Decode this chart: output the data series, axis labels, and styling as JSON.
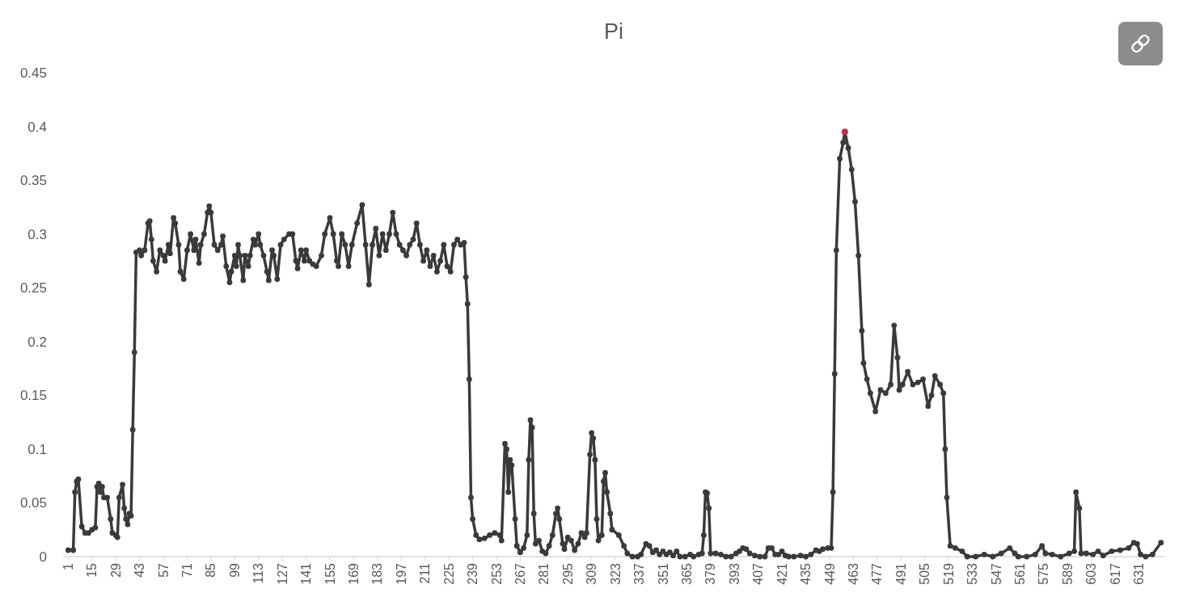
{
  "chart_data": {
    "type": "line",
    "title": "Pi",
    "xlim": [
      -2,
      646
    ],
    "xticks": [
      1,
      15,
      29,
      43,
      57,
      71,
      85,
      99,
      113,
      127,
      141,
      155,
      169,
      183,
      197,
      211,
      225,
      239,
      253,
      267,
      281,
      295,
      309,
      323,
      337,
      351,
      365,
      379,
      393,
      407,
      421,
      435,
      449,
      463,
      477,
      491,
      505,
      519,
      533,
      547,
      561,
      575,
      589,
      603,
      617,
      631
    ],
    "ylim": [
      0,
      0.45
    ],
    "yticks": [
      0,
      0.05,
      0.1,
      0.15,
      0.2,
      0.25,
      0.3,
      0.35,
      0.4,
      0.45
    ],
    "marker": "circle",
    "series": [
      {
        "color": "#3a3a3a",
        "x": [
          1,
          4,
          5,
          6,
          7,
          9,
          11,
          13,
          15,
          17,
          18,
          19,
          20,
          21,
          22,
          24,
          26,
          27,
          29,
          30,
          31,
          33,
          34,
          35,
          36,
          37,
          38,
          39,
          40,
          41,
          43,
          44,
          46,
          48,
          49,
          50,
          51,
          53,
          55,
          57,
          58,
          60,
          61,
          63,
          64,
          66,
          67,
          69,
          71,
          73,
          75,
          76,
          78,
          79,
          81,
          83,
          84,
          85,
          87,
          89,
          91,
          92,
          94,
          96,
          97,
          99,
          100,
          101,
          102,
          104,
          105,
          107,
          108,
          110,
          111,
          113,
          114,
          116,
          118,
          119,
          121,
          122,
          124,
          126,
          128,
          131,
          133,
          135,
          136,
          138,
          140,
          141,
          143,
          145,
          147,
          150,
          152,
          155,
          157,
          159,
          160,
          162,
          164,
          166,
          168,
          171,
          174,
          176,
          178,
          180,
          182,
          184,
          186,
          188,
          190,
          192,
          194,
          196,
          198,
          200,
          202,
          204,
          206,
          208,
          210,
          212,
          214,
          216,
          218,
          220,
          222,
          224,
          226,
          228,
          230,
          232,
          234,
          235,
          236,
          237,
          238,
          239,
          241,
          243,
          246,
          249,
          252,
          255,
          256,
          258,
          259,
          260,
          261,
          262,
          264,
          265,
          267,
          269,
          271,
          272,
          273,
          274,
          275,
          276,
          278,
          280,
          282,
          284,
          286,
          288,
          289,
          290,
          292,
          293,
          295,
          297,
          299,
          301,
          303,
          305,
          306,
          308,
          309,
          310,
          311,
          312,
          313,
          315,
          316,
          317,
          318,
          320,
          321,
          325,
          328,
          330,
          333,
          336,
          338,
          341,
          343,
          345,
          347,
          349,
          351,
          353,
          355,
          357,
          359,
          361,
          364,
          367,
          369,
          372,
          374,
          375,
          376,
          377,
          378,
          379,
          382,
          385,
          388,
          391,
          394,
          396,
          398,
          400,
          402,
          405,
          408,
          411,
          413,
          415,
          417,
          419,
          421,
          423,
          425,
          428,
          432,
          435,
          438,
          441,
          443,
          445,
          448,
          450,
          451,
          452,
          453,
          455,
          457,
          458,
          460,
          462,
          464,
          466,
          468,
          469,
          471,
          473,
          476,
          479,
          482,
          485,
          487,
          489,
          490,
          492,
          495,
          498,
          501,
          504,
          507,
          509,
          511,
          514,
          516,
          517,
          518,
          520,
          523,
          527,
          530,
          535,
          540,
          545,
          550,
          555,
          558,
          560,
          565,
          570,
          574,
          576,
          580,
          585,
          590,
          593,
          594,
          596,
          597,
          600,
          604,
          607,
          610,
          615,
          620,
          625,
          628,
          630,
          632,
          635,
          639,
          644
        ],
        "values": [
          0.006,
          0.006,
          0.06,
          0.07,
          0.072,
          0.028,
          0.022,
          0.022,
          0.025,
          0.027,
          0.065,
          0.068,
          0.06,
          0.065,
          0.055,
          0.055,
          0.035,
          0.022,
          0.02,
          0.018,
          0.055,
          0.067,
          0.045,
          0.035,
          0.03,
          0.04,
          0.038,
          0.118,
          0.19,
          0.283,
          0.285,
          0.28,
          0.285,
          0.31,
          0.312,
          0.295,
          0.275,
          0.265,
          0.285,
          0.28,
          0.275,
          0.29,
          0.282,
          0.315,
          0.31,
          0.29,
          0.265,
          0.258,
          0.285,
          0.3,
          0.285,
          0.295,
          0.273,
          0.29,
          0.3,
          0.32,
          0.326,
          0.32,
          0.29,
          0.285,
          0.29,
          0.298,
          0.27,
          0.255,
          0.265,
          0.28,
          0.27,
          0.29,
          0.28,
          0.257,
          0.28,
          0.27,
          0.28,
          0.295,
          0.29,
          0.3,
          0.29,
          0.28,
          0.265,
          0.257,
          0.285,
          0.28,
          0.258,
          0.29,
          0.295,
          0.3,
          0.3,
          0.275,
          0.268,
          0.285,
          0.275,
          0.285,
          0.275,
          0.272,
          0.27,
          0.28,
          0.3,
          0.315,
          0.3,
          0.275,
          0.27,
          0.3,
          0.29,
          0.27,
          0.29,
          0.31,
          0.327,
          0.29,
          0.253,
          0.29,
          0.305,
          0.28,
          0.3,
          0.285,
          0.3,
          0.32,
          0.3,
          0.29,
          0.285,
          0.28,
          0.29,
          0.295,
          0.31,
          0.29,
          0.275,
          0.285,
          0.27,
          0.28,
          0.265,
          0.275,
          0.29,
          0.27,
          0.265,
          0.29,
          0.295,
          0.29,
          0.292,
          0.26,
          0.235,
          0.165,
          0.055,
          0.035,
          0.02,
          0.016,
          0.017,
          0.02,
          0.022,
          0.02,
          0.015,
          0.105,
          0.1,
          0.06,
          0.09,
          0.085,
          0.035,
          0.01,
          0.004,
          0.008,
          0.02,
          0.09,
          0.127,
          0.12,
          0.04,
          0.012,
          0.015,
          0.005,
          0.003,
          0.01,
          0.02,
          0.04,
          0.045,
          0.035,
          0.012,
          0.007,
          0.018,
          0.015,
          0.006,
          0.012,
          0.022,
          0.018,
          0.022,
          0.095,
          0.115,
          0.11,
          0.09,
          0.035,
          0.015,
          0.02,
          0.07,
          0.078,
          0.06,
          0.04,
          0.025,
          0.02,
          0.01,
          0.003,
          0,
          0,
          0.002,
          0.012,
          0.01,
          0.004,
          0.006,
          0.002,
          0.005,
          0.002,
          0.004,
          0.001,
          0.005,
          0,
          0,
          0.002,
          0,
          0.002,
          0.003,
          0.02,
          0.06,
          0.059,
          0.045,
          0.003,
          0.003,
          0.002,
          0,
          0,
          0.003,
          0.005,
          0.008,
          0.007,
          0.003,
          0.001,
          0,
          0,
          0.008,
          0.008,
          0.002,
          0.002,
          0.005,
          0.001,
          0,
          0,
          0.001,
          0,
          0.002,
          0.006,
          0.005,
          0.007,
          0.008,
          0.008,
          0.06,
          0.17,
          0.285,
          0.37,
          0.385,
          0.395,
          0.38,
          0.36,
          0.33,
          0.28,
          0.21,
          0.18,
          0.165,
          0.152,
          0.135,
          0.155,
          0.152,
          0.16,
          0.215,
          0.185,
          0.155,
          0.16,
          0.172,
          0.16,
          0.162,
          0.165,
          0.14,
          0.15,
          0.168,
          0.16,
          0.152,
          0.1,
          0.055,
          0.01,
          0.008,
          0.005,
          0,
          0,
          0.002,
          0,
          0.003,
          0.008,
          0.003,
          0,
          0,
          0.002,
          0.01,
          0.003,
          0.002,
          0,
          0.003,
          0.005,
          0.06,
          0.045,
          0.003,
          0.003,
          0.002,
          0.005,
          0.001,
          0.005,
          0.006,
          0.008,
          0.013,
          0.012,
          0.002,
          0,
          0.002,
          0.013
        ]
      },
      {
        "type": "scatter",
        "color": "#c0304a",
        "x": [
          458
        ],
        "values": [
          0.395
        ]
      }
    ]
  }
}
